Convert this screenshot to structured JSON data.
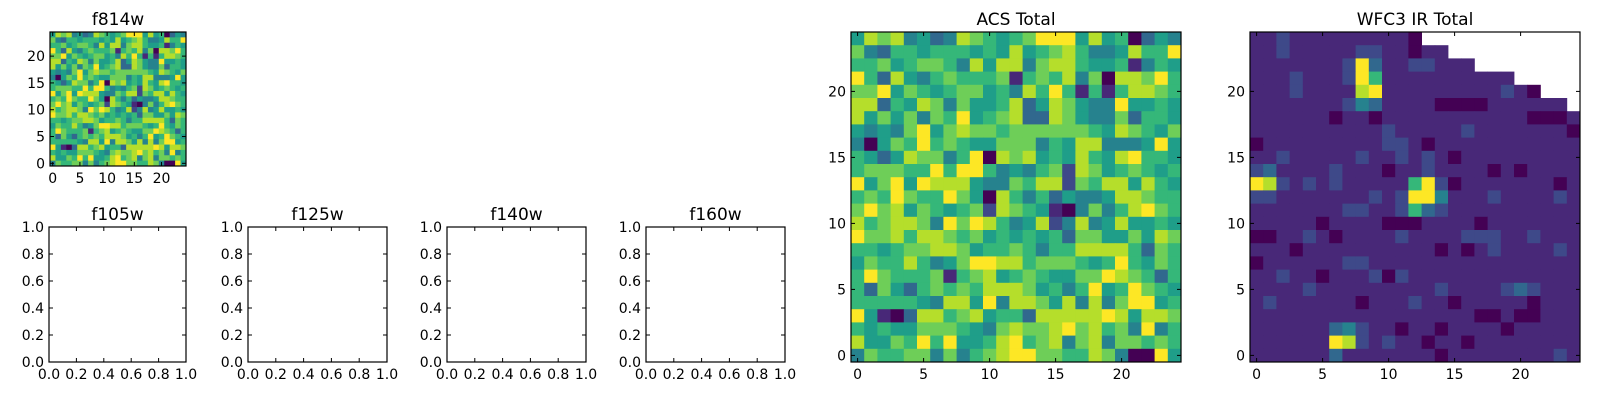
{
  "chart_data": [
    {
      "type": "heatmap",
      "title": "f814w",
      "xlim": [
        -0.5,
        24.5
      ],
      "ylim": [
        -0.5,
        24.5
      ],
      "xticks": [
        0,
        5,
        10,
        15,
        20
      ],
      "yticks": [
        0,
        5,
        10,
        15,
        20
      ],
      "colormap": "viridis",
      "grid_ref": "acs"
    },
    {
      "type": "empty",
      "title": "f105w",
      "xlim": [
        0,
        1
      ],
      "ylim": [
        0,
        1
      ],
      "xticks": [
        "0.0",
        "0.2",
        "0.4",
        "0.6",
        "0.8",
        "1.0"
      ],
      "yticks": [
        "0.0",
        "0.2",
        "0.4",
        "0.6",
        "0.8",
        "1.0"
      ]
    },
    {
      "type": "empty",
      "title": "f125w",
      "xlim": [
        0,
        1
      ],
      "ylim": [
        0,
        1
      ],
      "xticks": [
        "0.0",
        "0.2",
        "0.4",
        "0.6",
        "0.8",
        "1.0"
      ],
      "yticks": [
        "0.0",
        "0.2",
        "0.4",
        "0.6",
        "0.8",
        "1.0"
      ]
    },
    {
      "type": "empty",
      "title": "f140w",
      "xlim": [
        0,
        1
      ],
      "ylim": [
        0,
        1
      ],
      "xticks": [
        "0.0",
        "0.2",
        "0.4",
        "0.6",
        "0.8",
        "1.0"
      ],
      "yticks": [
        "0.0",
        "0.2",
        "0.4",
        "0.6",
        "0.8",
        "1.0"
      ]
    },
    {
      "type": "empty",
      "title": "f160w",
      "xlim": [
        0,
        1
      ],
      "ylim": [
        0,
        1
      ],
      "xticks": [
        "0.0",
        "0.2",
        "0.4",
        "0.6",
        "0.8",
        "1.0"
      ],
      "yticks": [
        "0.0",
        "0.2",
        "0.4",
        "0.6",
        "0.8",
        "1.0"
      ]
    },
    {
      "type": "heatmap",
      "title": "ACS Total",
      "xlim": [
        -0.5,
        24.5
      ],
      "ylim": [
        -0.5,
        24.5
      ],
      "xticks": [
        0,
        5,
        10,
        15,
        20
      ],
      "yticks": [
        0,
        5,
        10,
        15,
        20
      ],
      "colormap": "viridis",
      "grid_ref": "acs"
    },
    {
      "type": "heatmap",
      "title": "WFC3 IR Total",
      "xlim": [
        -0.5,
        24.5
      ],
      "ylim": [
        -0.5,
        24.5
      ],
      "xticks": [
        0,
        5,
        10,
        15,
        20
      ],
      "yticks": [
        0,
        5,
        10,
        15,
        20
      ],
      "colormap": "viridis",
      "grid_ref": "wfc3"
    }
  ],
  "grids": {
    "acs": [
      "5878453487656799958560354",
      "7436656665658567864458669",
      "6675677648588478865561465",
      "9638546766671676847088796",
      "7795765677564869616168876",
      "8836587475568358754495565",
      "8575747695678338754473665",
      "5454795787767777776587657",
      "4057696765577746588444595",
      "6535877469087856586589665",
      "6777669699645467287567656",
      "9579598885447688276885865",
      "6769766975086463544588766",
      "7978576567287651047468976",
      "8678874979864582484585565",
      "9778688767565656377557587",
      "6656778875667646688886376",
      "5766864579988677765696576",
      "6976667167856765577987636",
      "6375367676888756469569765",
      "6666654885948875848479956",
      "9510388678566388888985887",
      "6565577765478778978674946",
      "8557696955689678478477676",
      "4766774746789977668740095"
    ],
    "wfc3": [
      "1121111111110............",
      "112111112211011..........",
      "11111112931122111........",
      "11121112961111111111.....",
      "1112111189111111111210...",
      "111111124311110000111111.",
      "1111110110111111111110001",
      "1111111111211111211111110",
      "0111111111221011111111111",
      "1121111121121210111111111",
      "2311112111011211110101111",
      "9821212111116920111111101",
      "2211111112129941112111121",
      "1111111221126321111111111",
      "1111101111000111101111111",
      "0011210111121111222112111",
      "1110111111111101012111121",
      "0111111221111111111111111",
      "1121101112021111111111111",
      "1111211111111121111232111",
      "1211111101112110111110111",
      "1111111111111111100100111",
      "1111113421101101111011111",
      "1111119821211011011111111",
      "1111113111111101111111121"
    ]
  }
}
